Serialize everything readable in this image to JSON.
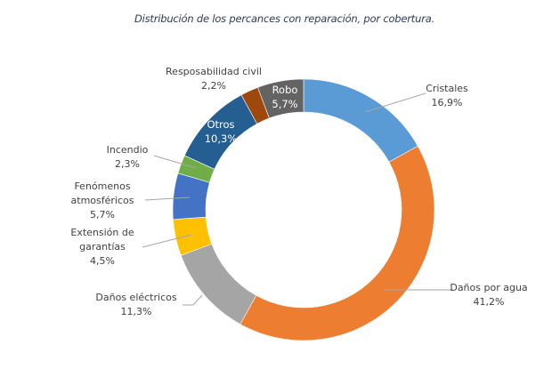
{
  "chart_data": {
    "type": "pie",
    "variant": "donut",
    "title": "Distribución de los percances con reparación, por cobertura.",
    "start": "top",
    "direction": "clockwise",
    "slices": [
      {
        "label": "Cristales",
        "value": 16.9,
        "value_label": "16,9%",
        "color": "#5b9bd5",
        "label_position": "outside"
      },
      {
        "label": "Daños por agua",
        "value": 41.2,
        "value_label": "41,2%",
        "color": "#ed7d31",
        "label_position": "outside"
      },
      {
        "label": "Daños eléctricos",
        "value": 11.3,
        "value_label": "11,3%",
        "color": "#a5a5a5",
        "label_position": "outside"
      },
      {
        "label": "Extensión de garantías",
        "value": 4.5,
        "value_label": "4,5%",
        "color": "#ffc000",
        "label_position": "outside"
      },
      {
        "label": "Fenómenos atmosféricos",
        "value": 5.7,
        "value_label": "5,7%",
        "color": "#4472c4",
        "label_position": "outside"
      },
      {
        "label": "Incendio",
        "value": 2.3,
        "value_label": "2,3%",
        "color": "#70ad47",
        "label_position": "outside"
      },
      {
        "label": "Otros",
        "value": 10.3,
        "value_label": "10,3%",
        "color": "#255e91",
        "label_position": "inside"
      },
      {
        "label": "Resposabilidad civil",
        "value": 2.2,
        "value_label": "2,2%",
        "color": "#9e480e",
        "label_position": "outside"
      },
      {
        "label": "Robo",
        "value": 5.7,
        "value_label": "5,7%",
        "color": "#636363",
        "label_position": "inside"
      }
    ],
    "legend": "none"
  }
}
